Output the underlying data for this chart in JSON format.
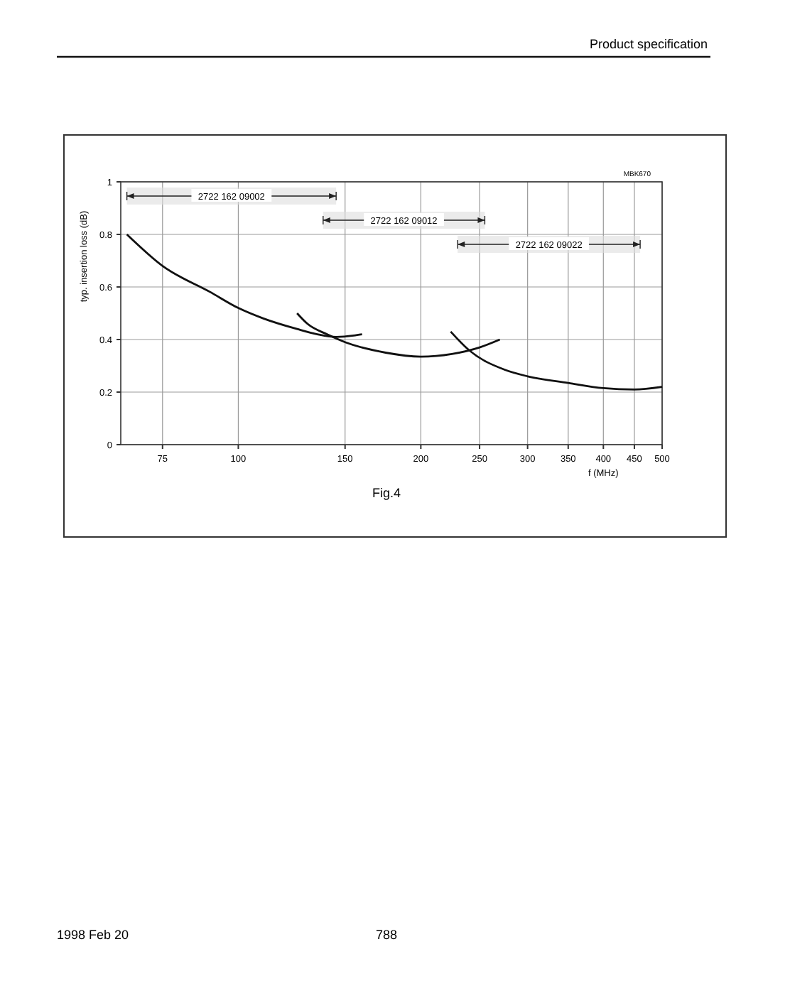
{
  "chart_data": {
    "type": "line",
    "xlabel": "f (MHz)",
    "ylabel": "typ. insertion loss (dB)",
    "log": "x",
    "xlim": [
      64,
      500
    ],
    "xticks": [
      75,
      100,
      150,
      200,
      250,
      300,
      350,
      400,
      450,
      500
    ],
    "ylim": [
      0,
      1
    ],
    "yticks": [
      0,
      0.2,
      0.4,
      0.6,
      0.8,
      1
    ],
    "grid": true,
    "line_style": "solid",
    "marker": "none",
    "series": [
      {
        "color": "#111111",
        "x": [
          65.5,
          75,
          90,
          100,
          110,
          125,
          135,
          145,
          155,
          160
        ],
        "values": [
          0.8,
          0.68,
          0.58,
          0.52,
          0.48,
          0.44,
          0.42,
          0.41,
          0.415,
          0.42
        ]
      },
      {
        "color": "#111111",
        "x": [
          125,
          130,
          140,
          150,
          175,
          200,
          225,
          250,
          270
        ],
        "values": [
          0.5,
          0.46,
          0.42,
          0.39,
          0.35,
          0.335,
          0.345,
          0.37,
          0.4
        ]
      },
      {
        "color": "#111111",
        "x": [
          224,
          240,
          275,
          300,
          350,
          400,
          450,
          500
        ],
        "values": [
          0.43,
          0.36,
          0.285,
          0.26,
          0.235,
          0.215,
          0.21,
          0.22
        ]
      }
    ],
    "bands": [
      {
        "axis": "x",
        "from": 65.5,
        "to": 145,
        "label": "2722 162 09002"
      },
      {
        "axis": "x",
        "from": 138,
        "to": 255,
        "label": "2722 162 09012"
      },
      {
        "axis": "x",
        "from": 230,
        "to": 460,
        "label": "2722 162 09022"
      }
    ],
    "annotations": [
      "Product specification",
      "MBK670",
      "Fig.4",
      "1998 Feb 20",
      "788"
    ]
  }
}
